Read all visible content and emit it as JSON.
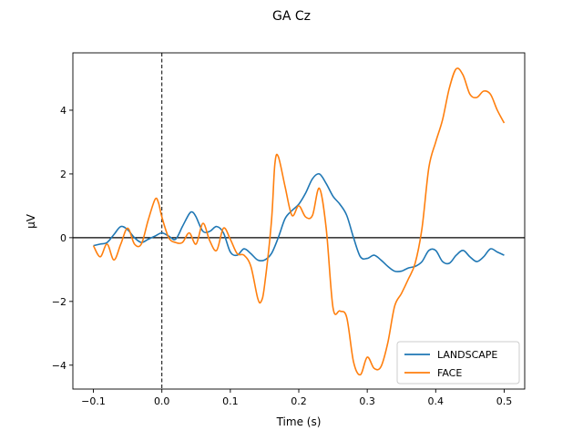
{
  "chart_data": {
    "type": "line",
    "title": "GA Cz",
    "xlabel": "Time (s)",
    "ylabel": "µV",
    "xlim": [
      -0.13,
      0.53
    ],
    "ylim": [
      -4.75,
      5.8
    ],
    "xticks": [
      -0.1,
      0.0,
      0.1,
      0.2,
      0.3,
      0.4,
      0.5
    ],
    "xtick_labels": [
      "−0.1",
      "0.0",
      "0.1",
      "0.2",
      "0.3",
      "0.4",
      "0.5"
    ],
    "yticks": [
      -4,
      -2,
      0,
      2,
      4
    ],
    "ytick_labels": [
      "−4",
      "−2",
      "0",
      "2",
      "4"
    ],
    "grid": false,
    "legend_position": "lower-right",
    "hline": 0,
    "vline": 0,
    "series": [
      {
        "name": "LANDSCAPE",
        "color": "#1f77b4",
        "x": [
          -0.1,
          -0.09,
          -0.08,
          -0.07,
          -0.06,
          -0.05,
          -0.04,
          -0.03,
          -0.02,
          -0.01,
          0.0,
          0.01,
          0.02,
          0.03,
          0.04,
          0.045,
          0.05,
          0.06,
          0.07,
          0.08,
          0.09,
          0.1,
          0.11,
          0.12,
          0.13,
          0.14,
          0.15,
          0.16,
          0.17,
          0.18,
          0.19,
          0.2,
          0.21,
          0.22,
          0.23,
          0.24,
          0.25,
          0.26,
          0.27,
          0.28,
          0.29,
          0.3,
          0.31,
          0.32,
          0.33,
          0.34,
          0.35,
          0.36,
          0.37,
          0.38,
          0.39,
          0.4,
          0.41,
          0.42,
          0.43,
          0.44,
          0.45,
          0.46,
          0.47,
          0.48,
          0.49,
          0.5
        ],
        "y": [
          -0.25,
          -0.2,
          -0.15,
          0.1,
          0.35,
          0.25,
          0.0,
          -0.15,
          -0.05,
          0.05,
          0.15,
          0.05,
          -0.05,
          0.35,
          0.75,
          0.8,
          0.65,
          0.2,
          0.2,
          0.35,
          0.15,
          -0.45,
          -0.55,
          -0.35,
          -0.5,
          -0.7,
          -0.7,
          -0.5,
          0.0,
          0.6,
          0.85,
          1.05,
          1.4,
          1.85,
          2.0,
          1.7,
          1.3,
          1.05,
          0.7,
          0.0,
          -0.6,
          -0.65,
          -0.55,
          -0.7,
          -0.9,
          -1.05,
          -1.05,
          -0.95,
          -0.9,
          -0.75,
          -0.4,
          -0.4,
          -0.75,
          -0.8,
          -0.55,
          -0.4,
          -0.6,
          -0.75,
          -0.6,
          -0.35,
          -0.45,
          -0.55
        ]
      },
      {
        "name": "FACE",
        "color": "#ff7f0e",
        "x": [
          -0.1,
          -0.09,
          -0.08,
          -0.07,
          -0.06,
          -0.05,
          -0.04,
          -0.03,
          -0.02,
          -0.01,
          -0.005,
          0.0,
          0.01,
          0.02,
          0.03,
          0.04,
          0.05,
          0.06,
          0.07,
          0.08,
          0.09,
          0.1,
          0.11,
          0.12,
          0.13,
          0.14,
          0.145,
          0.15,
          0.16,
          0.165,
          0.17,
          0.18,
          0.19,
          0.2,
          0.21,
          0.22,
          0.23,
          0.24,
          0.25,
          0.26,
          0.27,
          0.28,
          0.29,
          0.3,
          0.31,
          0.32,
          0.33,
          0.34,
          0.35,
          0.36,
          0.37,
          0.38,
          0.39,
          0.4,
          0.41,
          0.42,
          0.43,
          0.44,
          0.45,
          0.46,
          0.47,
          0.48,
          0.49,
          0.5
        ],
        "y": [
          -0.25,
          -0.6,
          -0.2,
          -0.7,
          -0.2,
          0.3,
          -0.2,
          -0.2,
          0.55,
          1.2,
          1.1,
          0.65,
          0.0,
          -0.15,
          -0.15,
          0.15,
          -0.2,
          0.45,
          -0.1,
          -0.4,
          0.3,
          -0.05,
          -0.5,
          -0.55,
          -0.9,
          -1.9,
          -2.0,
          -1.5,
          0.5,
          2.3,
          2.55,
          1.6,
          0.7,
          1.0,
          0.65,
          0.7,
          1.55,
          0.3,
          -2.2,
          -2.3,
          -2.5,
          -3.9,
          -4.3,
          -3.75,
          -4.1,
          -4.05,
          -3.3,
          -2.15,
          -1.75,
          -1.3,
          -0.8,
          0.3,
          2.2,
          3.0,
          3.7,
          4.7,
          5.3,
          5.1,
          4.5,
          4.4,
          4.6,
          4.5,
          4.0,
          3.6
        ]
      }
    ]
  }
}
